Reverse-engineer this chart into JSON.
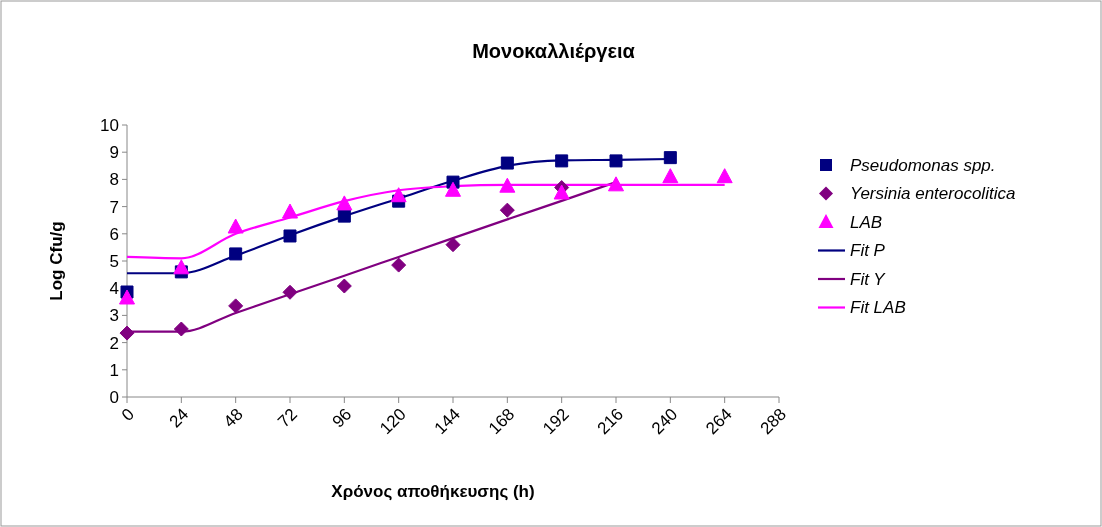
{
  "chart_data": {
    "type": "scatter",
    "title": "Μονοκαλλιέργεια",
    "xlabel": "Χρόνος αποθήκευσης (h)",
    "ylabel": "Log Cfu/g",
    "xlim": [
      0,
      288
    ],
    "xticks": [
      0,
      24,
      48,
      72,
      96,
      120,
      144,
      168,
      192,
      216,
      240,
      264,
      288
    ],
    "ylim": [
      0,
      10
    ],
    "yticks": [
      0,
      1,
      2,
      3,
      4,
      5,
      6,
      7,
      8,
      9,
      10
    ],
    "grid": false,
    "legend": "right",
    "series": [
      {
        "name": "Pseudomonas spp.",
        "type": "scatter",
        "marker": "square",
        "color": "#000080",
        "x": [
          0,
          24,
          48,
          72,
          96,
          120,
          144,
          168,
          192,
          216,
          240
        ],
        "values": [
          3.86,
          4.6,
          5.26,
          5.92,
          6.65,
          7.2,
          7.9,
          8.6,
          8.68,
          8.68,
          8.8
        ]
      },
      {
        "name": "Yersinia enterocolitica",
        "type": "scatter",
        "marker": "diamond",
        "color": "#800080",
        "x": [
          0,
          24,
          48,
          72,
          96,
          120,
          144,
          168,
          192
        ],
        "values": [
          2.35,
          2.5,
          3.35,
          3.85,
          4.08,
          4.85,
          5.6,
          6.87,
          7.7
        ]
      },
      {
        "name": "LAB",
        "type": "scatter",
        "marker": "triangle",
        "color": "#ff00ff",
        "x": [
          0,
          24,
          48,
          72,
          96,
          120,
          144,
          168,
          192,
          216,
          240,
          264
        ],
        "values": [
          3.64,
          4.75,
          6.25,
          6.8,
          7.1,
          7.4,
          7.6,
          7.75,
          7.5,
          7.8,
          8.1,
          8.1
        ]
      },
      {
        "name": "Fit P",
        "type": "line",
        "marker": "none",
        "line_style": "solid",
        "color": "#000080",
        "x": [
          0,
          24,
          48,
          72,
          96,
          120,
          144,
          168,
          192,
          216,
          240
        ],
        "values": [
          4.55,
          4.55,
          5.2,
          5.95,
          6.65,
          7.3,
          7.95,
          8.5,
          8.7,
          8.72,
          8.75
        ]
      },
      {
        "name": "Fit Y",
        "type": "line",
        "marker": "none",
        "line_style": "solid",
        "color": "#800080",
        "x": [
          0,
          24,
          48,
          72,
          96,
          120,
          144,
          168,
          192,
          216
        ],
        "values": [
          2.4,
          2.4,
          3.09,
          3.78,
          4.46,
          5.15,
          5.84,
          6.53,
          7.21,
          7.9
        ]
      },
      {
        "name": "Fit LAB",
        "type": "line",
        "marker": "none",
        "line_style": "solid",
        "color": "#ff00ff",
        "x": [
          0,
          24,
          48,
          72,
          96,
          120,
          144,
          168,
          192,
          216,
          240,
          264
        ],
        "values": [
          5.15,
          5.1,
          6.0,
          6.6,
          7.2,
          7.6,
          7.75,
          7.8,
          7.8,
          7.8,
          7.8,
          7.8
        ]
      }
    ]
  }
}
